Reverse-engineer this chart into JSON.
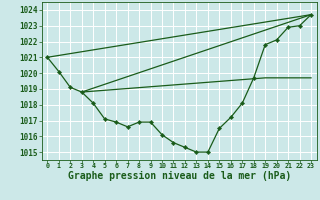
{
  "background_color": "#cce8e8",
  "grid_color": "#ffffff",
  "line_color": "#1a5c1a",
  "xlabel": "Graphe pression niveau de la mer (hPa)",
  "xlim": [
    -0.5,
    23.5
  ],
  "ylim": [
    1014.5,
    1024.5
  ],
  "yticks": [
    1015,
    1016,
    1017,
    1018,
    1019,
    1020,
    1021,
    1022,
    1023,
    1024
  ],
  "xticks": [
    0,
    1,
    2,
    3,
    4,
    5,
    6,
    7,
    8,
    9,
    10,
    11,
    12,
    13,
    14,
    15,
    16,
    17,
    18,
    19,
    20,
    21,
    22,
    23
  ],
  "line1_x": [
    0,
    1,
    2,
    3,
    4,
    5,
    6,
    7,
    8,
    9,
    10,
    11,
    12,
    13,
    14,
    15,
    16,
    17,
    18,
    19,
    20,
    21,
    22,
    23
  ],
  "line1_y": [
    1021.0,
    1020.1,
    1019.1,
    1018.8,
    1018.1,
    1017.1,
    1016.9,
    1016.6,
    1016.9,
    1016.9,
    1016.1,
    1015.6,
    1015.3,
    1015.0,
    1015.0,
    1016.5,
    1017.2,
    1018.1,
    1019.7,
    1021.8,
    1022.1,
    1022.9,
    1023.0,
    1023.7
  ],
  "line2_x": [
    0,
    23
  ],
  "line2_y": [
    1021.0,
    1023.7
  ],
  "line3_x": [
    3,
    23
  ],
  "line3_y": [
    1018.8,
    1023.7
  ],
  "line4_x": [
    3,
    19,
    23
  ],
  "line4_y": [
    1018.8,
    1019.7,
    1019.7
  ]
}
